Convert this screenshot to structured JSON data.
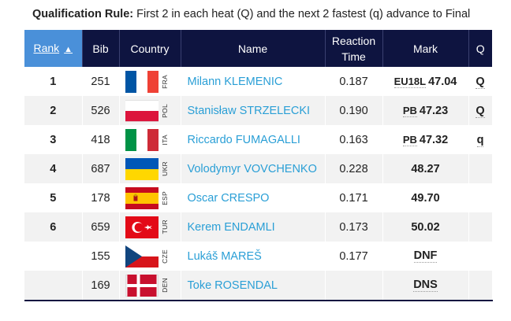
{
  "rule": {
    "label": "Qualification Rule:",
    "text": " First 2 in each heat (Q) and the next 2 fastest (q) advance to Final"
  },
  "columns": {
    "rank": "Rank",
    "bib": "Bib",
    "country": "Country",
    "name": "Name",
    "reaction": "Reaction Time",
    "mark": "Mark",
    "q": "Q"
  },
  "sort_arrow_icon": "triangle-up-icon",
  "rows": [
    {
      "rank": "1",
      "bib": "251",
      "code": "FRA",
      "flag": "france",
      "name": "Milann KLEMENIC",
      "reaction": "0.187",
      "tag": "EU18L",
      "mark": "47.04",
      "q": "Q"
    },
    {
      "rank": "2",
      "bib": "526",
      "code": "POL",
      "flag": "poland",
      "name": "Stanisław STRZELECKI",
      "reaction": "0.190",
      "tag": "PB",
      "mark": "47.23",
      "q": "Q"
    },
    {
      "rank": "3",
      "bib": "418",
      "code": "ITA",
      "flag": "italy",
      "name": "Riccardo FUMAGALLI",
      "reaction": "0.163",
      "tag": "PB",
      "mark": "47.32",
      "q": "q"
    },
    {
      "rank": "4",
      "bib": "687",
      "code": "UKR",
      "flag": "ukraine",
      "name": "Volodymyr VOVCHENKO",
      "reaction": "0.228",
      "tag": "",
      "mark": "48.27",
      "q": ""
    },
    {
      "rank": "5",
      "bib": "178",
      "code": "ESP",
      "flag": "spain",
      "name": "Oscar CRESPO",
      "reaction": "0.171",
      "tag": "",
      "mark": "49.70",
      "q": ""
    },
    {
      "rank": "6",
      "bib": "659",
      "code": "TUR",
      "flag": "turkey",
      "name": "Kerem ENDAMLI",
      "reaction": "0.173",
      "tag": "",
      "mark": "50.02",
      "q": ""
    },
    {
      "rank": "",
      "bib": "155",
      "code": "CZE",
      "flag": "czech",
      "name": "Lukáš MAREŠ",
      "reaction": "0.177",
      "tag": "",
      "mark": "DNF",
      "q": ""
    },
    {
      "rank": "",
      "bib": "169",
      "code": "DEN",
      "flag": "denmark",
      "name": "Toke ROSENDAL",
      "reaction": "",
      "tag": "",
      "mark": "DNS",
      "q": ""
    }
  ],
  "colors": {
    "header_bg": "#0e1440",
    "rank_header_bg": "#4a90d9",
    "name_link": "#2a9fd6"
  }
}
